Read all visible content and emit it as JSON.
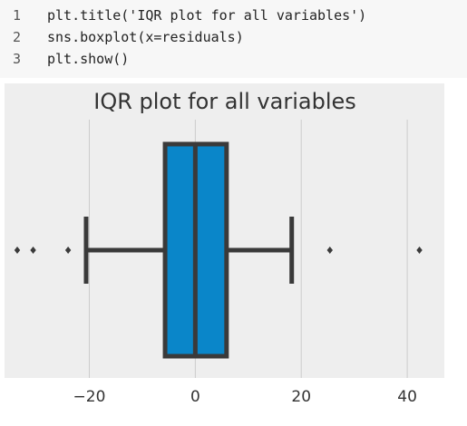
{
  "code": {
    "lines": [
      {
        "number": "1",
        "text": "plt.title('IQR plot for all variables')"
      },
      {
        "number": "2",
        "text": "sns.boxplot(x=residuals)"
      },
      {
        "number": "3",
        "text": "plt.show()"
      }
    ]
  },
  "chart_data": {
    "type": "box",
    "title": "IQR plot for all variables",
    "xlabel": "",
    "ylabel": "",
    "xlim": [
      -36,
      47
    ],
    "xticks": [
      -20,
      0,
      20,
      40
    ],
    "xtick_labels": [
      "−20",
      "0",
      "20",
      "40"
    ],
    "grid": true,
    "box": {
      "q1": -5.7,
      "median": 0,
      "q3": 5.9,
      "whisker_low": -20.6,
      "whisker_high": 18.2
    },
    "outliers": [
      -33.6,
      -30.6,
      -24.0,
      25.4,
      42.3
    ],
    "colors": {
      "box_fill": "#0a86c9",
      "box_edge": "#3a3a3a",
      "plot_bg": "#eeeeee",
      "grid": "#cccccc",
      "text": "#333333"
    }
  }
}
